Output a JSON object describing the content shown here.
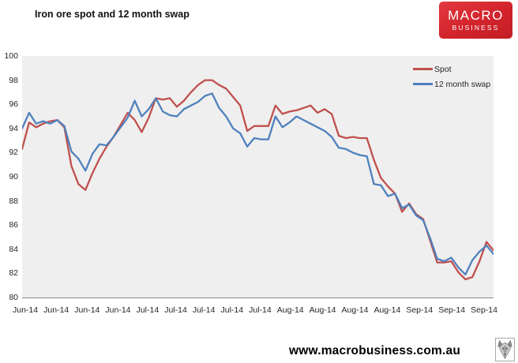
{
  "header": {
    "title": "Iron ore spot and 12 month swap",
    "logo": {
      "line1": "MACRO",
      "line2": "BUSINESS",
      "bg_color": "#d2232b"
    }
  },
  "chart_data": {
    "type": "line",
    "title": "Iron ore spot and 12 month swap",
    "ylabel": "",
    "xlabel": "",
    "ylim": [
      80,
      100
    ],
    "y_ticks": [
      100,
      98,
      96,
      94,
      92,
      90,
      88,
      86,
      84,
      82,
      80
    ],
    "x_tick_labels": [
      "Jun-14",
      "Jun-14",
      "Jun-14",
      "Jun-14",
      "Jul-14",
      "Jul-14",
      "Jul-14",
      "Jul-14",
      "Jul-14",
      "Aug-14",
      "Aug-14",
      "Aug-14",
      "Aug-14",
      "Sep-14",
      "Sep-14",
      "Sep-14"
    ],
    "grid": false,
    "plot_bg": "#efefef",
    "legend_position": "top-right",
    "series": [
      {
        "name": "Spot",
        "color": "#c0504d",
        "values": [
          92.3,
          94.5,
          94.1,
          94.4,
          94.6,
          94.7,
          94.1,
          90.9,
          89.4,
          88.9,
          90.3,
          91.5,
          92.5,
          93.3,
          94.3,
          95.3,
          94.7,
          93.7,
          94.9,
          96.5,
          96.4,
          96.5,
          95.8,
          96.3,
          97.0,
          97.6,
          98.0,
          98.0,
          97.6,
          97.3,
          96.6,
          95.9,
          93.8,
          94.2,
          94.2,
          94.2,
          95.9,
          95.2,
          95.4,
          95.5,
          95.7,
          95.9,
          95.3,
          95.6,
          95.2,
          93.4,
          93.2,
          93.3,
          93.2,
          93.2,
          91.4,
          89.9,
          89.2,
          88.6,
          87.1,
          87.8,
          86.9,
          86.5,
          84.7,
          82.9,
          82.9,
          83.0,
          82.1,
          81.5,
          81.7,
          83.0,
          84.6,
          83.9
        ]
      },
      {
        "name": "12 month swap",
        "color": "#4f81bd",
        "values": [
          94.0,
          95.3,
          94.4,
          94.6,
          94.4,
          94.7,
          94.2,
          92.1,
          91.5,
          90.5,
          91.9,
          92.7,
          92.6,
          93.3,
          94.1,
          94.9,
          96.3,
          95.0,
          95.6,
          96.5,
          95.4,
          95.1,
          95.0,
          95.6,
          95.9,
          96.2,
          96.7,
          96.9,
          95.7,
          95.0,
          94.0,
          93.6,
          92.5,
          93.2,
          93.1,
          93.1,
          95.0,
          94.1,
          94.5,
          95.0,
          94.7,
          94.4,
          94.1,
          93.8,
          93.3,
          92.4,
          92.3,
          92.0,
          91.8,
          91.7,
          89.4,
          89.3,
          88.4,
          88.6,
          87.4,
          87.7,
          86.8,
          86.4,
          84.9,
          83.2,
          83.0,
          83.3,
          82.5,
          81.9,
          83.1,
          83.8,
          84.3,
          83.6
        ]
      }
    ]
  },
  "legend": {
    "items": [
      {
        "label": "Spot",
        "color": "#c0504d",
        "icon": "red-line-swatch"
      },
      {
        "label": "12 month swap",
        "color": "#4f81bd",
        "icon": "blue-line-swatch"
      }
    ]
  },
  "footer": {
    "url": "www.macrobusiness.com.au",
    "icon": "wolf-icon"
  }
}
